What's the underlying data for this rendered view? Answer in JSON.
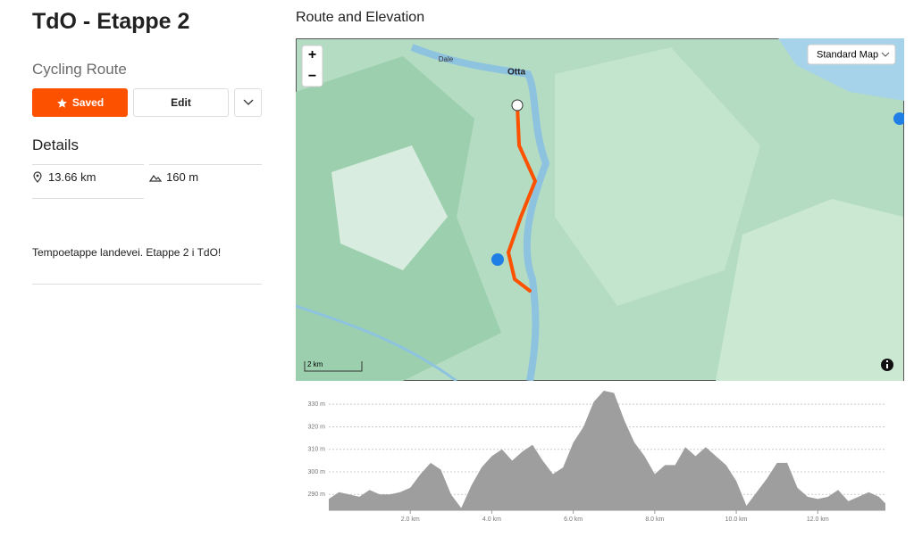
{
  "header": {
    "title": "TdO - Etappe 2",
    "subtitle": "Cycling Route"
  },
  "buttons": {
    "saved": "Saved",
    "edit": "Edit"
  },
  "details": {
    "heading": "Details",
    "distance": "13.66 km",
    "elevation": "160 m"
  },
  "description": "Tempoetappe landevei. Etappe 2 i TdO!",
  "map": {
    "heading": "Route and Elevation",
    "style_select": "Standard Map",
    "labels": [
      "Dale",
      "Otta"
    ],
    "scale": "2 km",
    "zoom_in": "+",
    "zoom_out": "−"
  },
  "chart_data": {
    "type": "area",
    "color": "#9e9e9e",
    "grid": true,
    "x": [
      0,
      0.25,
      0.5,
      0.75,
      1,
      1.25,
      1.5,
      1.75,
      2,
      2.25,
      2.5,
      2.75,
      3,
      3.25,
      3.5,
      3.75,
      4,
      4.25,
      4.5,
      4.75,
      5,
      5.25,
      5.5,
      5.75,
      6,
      6.25,
      6.5,
      6.75,
      7,
      7.25,
      7.5,
      7.75,
      8,
      8.25,
      8.5,
      8.75,
      9,
      9.25,
      9.5,
      9.75,
      10,
      10.25,
      10.5,
      10.75,
      11,
      11.25,
      11.5,
      11.75,
      12,
      12.25,
      12.5,
      12.75,
      13,
      13.25,
      13.5,
      13.66
    ],
    "values": [
      288,
      291,
      290,
      289,
      292,
      290,
      290,
      291,
      293,
      299,
      304,
      301,
      290,
      284,
      294,
      302,
      307,
      310,
      305,
      309,
      312,
      305,
      299,
      302,
      313,
      320,
      331,
      336,
      335,
      323,
      313,
      307,
      299,
      303,
      303,
      311,
      307,
      311,
      307,
      303,
      296,
      285,
      291,
      297,
      304,
      304,
      293,
      289,
      288,
      289,
      292,
      287,
      289,
      291,
      289,
      286
    ],
    "xlim": [
      0,
      13.66
    ],
    "ylim": [
      283,
      336
    ],
    "xticks": [
      {
        "value": 2,
        "label": "2.0 km"
      },
      {
        "value": 4,
        "label": "4.0 km"
      },
      {
        "value": 6,
        "label": "6.0 km"
      },
      {
        "value": 8,
        "label": "8.0 km"
      },
      {
        "value": 10,
        "label": "10.0 km"
      },
      {
        "value": 12,
        "label": "12.0 km"
      }
    ],
    "yticks": [
      {
        "value": 290,
        "label": "290 m"
      },
      {
        "value": 300,
        "label": "300 m"
      },
      {
        "value": 310,
        "label": "310 m"
      },
      {
        "value": 320,
        "label": "320 m"
      },
      {
        "value": 330,
        "label": "330 m"
      }
    ]
  }
}
